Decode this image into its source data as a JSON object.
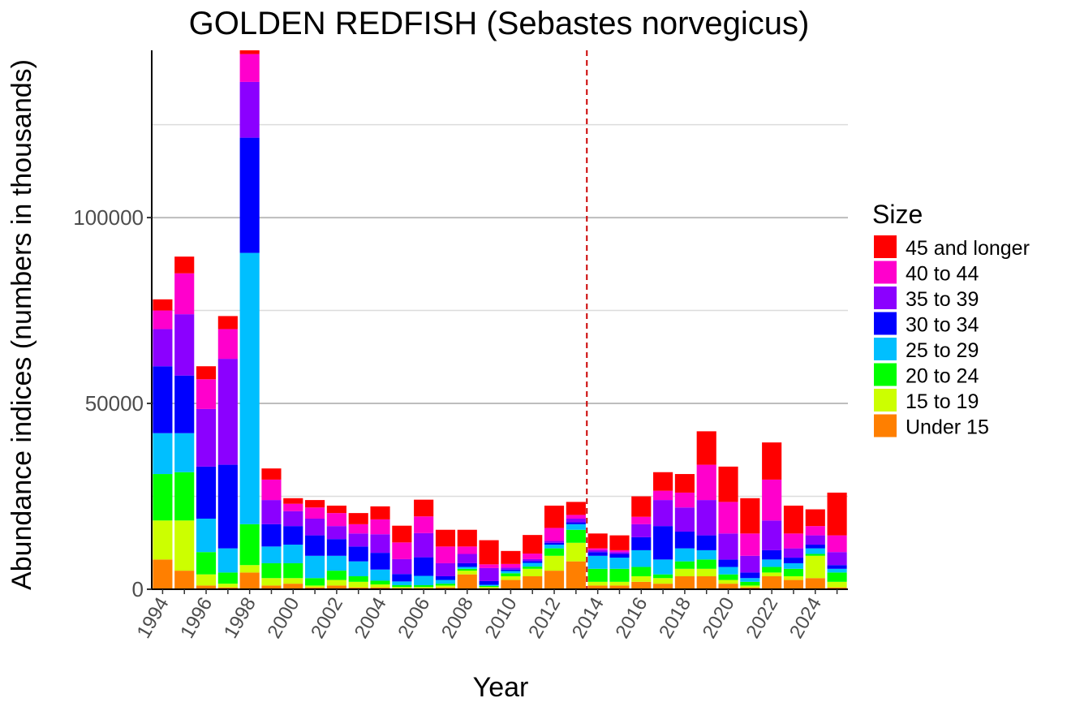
{
  "chart_data": {
    "type": "bar",
    "stacked": true,
    "title": "GOLDEN REDFISH (Sebastes norvegicus)",
    "xlabel": "Year",
    "ylabel": "Abundance indices (numbers in thousands)",
    "ylim": [
      0,
      145000
    ],
    "yticks": [
      0,
      50000,
      100000
    ],
    "ytick_labels": [
      "0",
      "50000",
      "100000"
    ],
    "minor_grid": [
      25000,
      75000,
      125000
    ],
    "xtick_labels": [
      "1994",
      "1996",
      "1998",
      "2000",
      "2002",
      "2004",
      "2006",
      "2008",
      "2010",
      "2012",
      "2014",
      "2016",
      "2018",
      "2020",
      "2022",
      "2024"
    ],
    "xtick_years": [
      1994,
      1996,
      1998,
      2000,
      2002,
      2004,
      2006,
      2008,
      2010,
      2012,
      2014,
      2016,
      2018,
      2020,
      2022,
      2024
    ],
    "categories": [
      1994,
      1995,
      1996,
      1997,
      1998,
      1999,
      2000,
      2001,
      2002,
      2003,
      2004,
      2005,
      2006,
      2007,
      2008,
      2009,
      2010,
      2011,
      2012,
      2013,
      2014,
      2015,
      2016,
      2017,
      2018,
      2019,
      2020,
      2021,
      2022,
      2023,
      2024,
      2025
    ],
    "vline": {
      "x": 2013.5,
      "color": "#cc0000",
      "style": "dashed"
    },
    "legend_title": "Size",
    "legend_position": "right",
    "series": [
      {
        "name": "Under 15",
        "color": "#ff7f00",
        "values": [
          8000,
          5000,
          1000,
          500,
          4500,
          1000,
          1500,
          500,
          1000,
          500,
          500,
          300,
          300,
          500,
          4000,
          300,
          2500,
          3500,
          5000,
          7500,
          1000,
          1000,
          2000,
          1500,
          3500,
          3500,
          1500,
          500,
          3500,
          2500,
          3000,
          500
        ]
      },
      {
        "name": "15 to 19",
        "color": "#ccff00",
        "values": [
          10500,
          13500,
          3000,
          1000,
          2000,
          2000,
          1500,
          500,
          1500,
          1500,
          800,
          300,
          300,
          500,
          1000,
          300,
          1000,
          2000,
          4000,
          5000,
          1000,
          1000,
          1500,
          1500,
          2000,
          2000,
          1000,
          500,
          1000,
          1000,
          6000,
          1500
        ]
      },
      {
        "name": "20 to 24",
        "color": "#00ff00",
        "values": [
          12500,
          13000,
          6000,
          3000,
          11000,
          4000,
          4000,
          2000,
          2500,
          1500,
          1000,
          500,
          500,
          500,
          500,
          300,
          800,
          600,
          2000,
          3500,
          3500,
          3500,
          2500,
          1000,
          2000,
          2500,
          1500,
          1000,
          1500,
          2000,
          500,
          2500
        ]
      },
      {
        "name": "25 to 29",
        "color": "#00bfff",
        "values": [
          11000,
          10500,
          9000,
          6500,
          73000,
          4500,
          5000,
          6000,
          4000,
          4000,
          3000,
          1000,
          2500,
          1000,
          500,
          300,
          600,
          1000,
          1000,
          1500,
          3500,
          3000,
          4500,
          4000,
          3500,
          2500,
          2000,
          1000,
          2000,
          1500,
          1500,
          1000
        ]
      },
      {
        "name": "30 to 34",
        "color": "#0000ff",
        "values": [
          18000,
          15500,
          14000,
          22500,
          31000,
          6000,
          5000,
          5500,
          4500,
          4000,
          4500,
          2000,
          5000,
          1000,
          1000,
          1000,
          400,
          500,
          500,
          500,
          1000,
          1000,
          3500,
          9000,
          4500,
          4000,
          2000,
          1500,
          2500,
          1500,
          1000,
          1000
        ]
      },
      {
        "name": "35 to 39",
        "color": "#8b00ff",
        "values": [
          10000,
          16500,
          15500,
          28500,
          15000,
          6500,
          4000,
          4500,
          3500,
          3500,
          5000,
          4000,
          6500,
          3500,
          2500,
          3500,
          500,
          500,
          500,
          1000,
          500,
          500,
          3500,
          7000,
          6500,
          9500,
          7000,
          4500,
          8000,
          2500,
          2500,
          3500
        ]
      },
      {
        "name": "40 to 44",
        "color": "#ff00cc",
        "values": [
          5000,
          11000,
          8000,
          8000,
          7500,
          5500,
          2000,
          3000,
          3500,
          2500,
          4000,
          4500,
          4500,
          4500,
          2000,
          1000,
          1000,
          1500,
          3500,
          1000,
          500,
          500,
          2000,
          2500,
          4000,
          9500,
          8500,
          6000,
          11000,
          4000,
          2500,
          4500
        ]
      },
      {
        "name": "45 and longer",
        "color": "#ff0000",
        "values": [
          3000,
          4500,
          3500,
          3500,
          2500,
          3000,
          1500,
          2000,
          2000,
          3000,
          3500,
          4500,
          4500,
          4500,
          4500,
          6500,
          3500,
          5000,
          6000,
          3500,
          4000,
          4000,
          5500,
          5000,
          5000,
          9000,
          9500,
          9500,
          10000,
          7500,
          4500,
          11500
        ]
      }
    ]
  }
}
